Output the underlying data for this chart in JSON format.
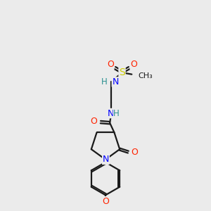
{
  "background_color": "#ebebeb",
  "bond_color": "#1a1a1a",
  "colors": {
    "N": "#0000ff",
    "O": "#ff2200",
    "S": "#cccc00",
    "C": "#1a1a1a",
    "H": "#2a9090"
  },
  "lw": 1.6
}
